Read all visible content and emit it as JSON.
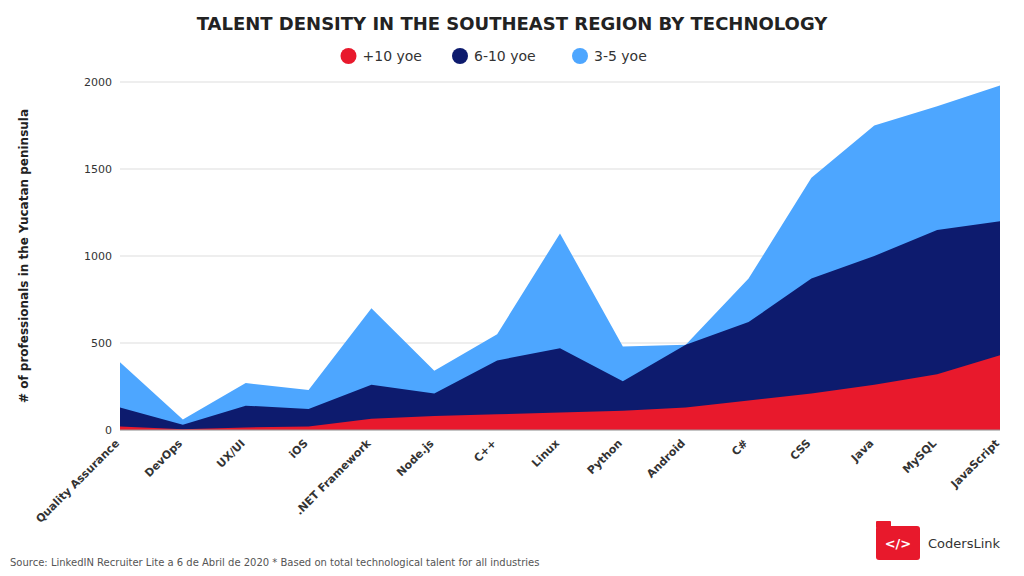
{
  "chart_data": {
    "type": "area",
    "title": "TALENT DENSITY IN THE SOUTHEAST REGION BY TECHNOLOGY",
    "y_label": "# of professionals in the Yucatan peninsula",
    "categories": [
      "Quality Assurance",
      "DevOps",
      "UX/UI",
      "iOS",
      ".NET Framework",
      "Node.js",
      "C++",
      "Linux",
      "Python",
      "Android",
      "C#",
      "CSS",
      "Java",
      "MySQL",
      "JavaScript"
    ],
    "series": [
      {
        "name": "+10 yoe",
        "color": "#e8192c",
        "values": [
          20,
          5,
          15,
          20,
          65,
          80,
          90,
          100,
          110,
          130,
          170,
          210,
          260,
          320,
          430
        ]
      },
      {
        "name": "6-10 yoe",
        "color": "#0d1b6e",
        "values": [
          130,
          30,
          140,
          120,
          260,
          210,
          400,
          470,
          280,
          490,
          620,
          870,
          1000,
          1150,
          1200
        ]
      },
      {
        "name": "3-5 yoe",
        "color": "#4da6ff",
        "values": [
          390,
          60,
          270,
          230,
          700,
          340,
          550,
          1130,
          480,
          490,
          870,
          1450,
          1750,
          1860,
          1980
        ]
      }
    ],
    "stacked": false,
    "ylim": [
      0,
      2000
    ],
    "yticks": [
      0,
      500,
      1000,
      1500,
      2000
    ],
    "grid": true,
    "legend": "top",
    "annotations": [
      {
        "text": "Source: LinkedIN Recruiter Lite a 6 de Abril de 2020 * Based on total technological talent for all industries"
      },
      {
        "text": "</>",
        "color": "#e8192c"
      },
      {
        "text": "CodersLink"
      }
    ]
  }
}
